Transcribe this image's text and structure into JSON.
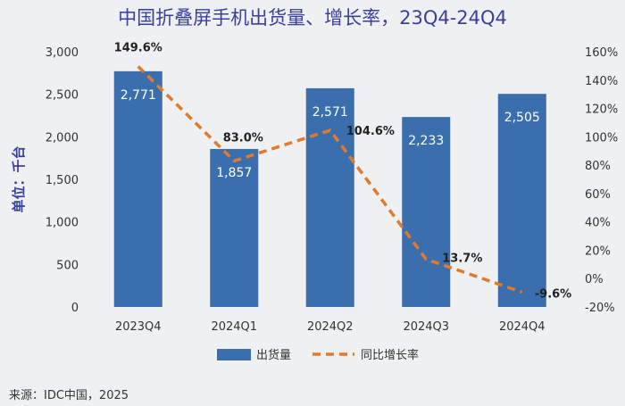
{
  "chart_data": {
    "type": "bar",
    "title": "中国折叠屏手机出货量、增长率，23Q4-24Q4",
    "ylabel": "单位：千台",
    "categories": [
      "2023Q4",
      "2024Q1",
      "2024Q2",
      "2024Q3",
      "2024Q4"
    ],
    "series": [
      {
        "name": "出货量",
        "type": "bar",
        "axis": "left",
        "values": [
          2771,
          1857,
          2571,
          2233,
          2505
        ],
        "value_labels": [
          "2,771",
          "1,857",
          "2,571",
          "2,233",
          "2,505"
        ],
        "color": "#3a6eac"
      },
      {
        "name": "同比增长率",
        "type": "line",
        "axis": "right",
        "style": "dashed",
        "values": [
          149.6,
          83.0,
          104.6,
          13.7,
          -9.6
        ],
        "value_labels": [
          "149.6%",
          "83.0%",
          "104.6%",
          "13.7%",
          "-9.6%"
        ],
        "color": "#e07b2e"
      }
    ],
    "y_left": {
      "range": [
        0,
        3000
      ],
      "ticks": [
        0,
        500,
        1000,
        1500,
        2000,
        2500,
        3000
      ],
      "tick_labels": [
        "0",
        "500",
        "1,000",
        "1,500",
        "2,000",
        "2,500",
        "3,000"
      ]
    },
    "y_right": {
      "range": [
        -20,
        160
      ],
      "ticks": [
        -20,
        0,
        20,
        40,
        60,
        80,
        100,
        120,
        140,
        160
      ],
      "tick_labels": [
        "-20%",
        "0%",
        "20%",
        "40%",
        "60%",
        "80%",
        "100%",
        "120%",
        "140%",
        "160%"
      ]
    },
    "legend_position": "bottom-center",
    "grid": false
  },
  "source": "来源：IDC中国，2025"
}
